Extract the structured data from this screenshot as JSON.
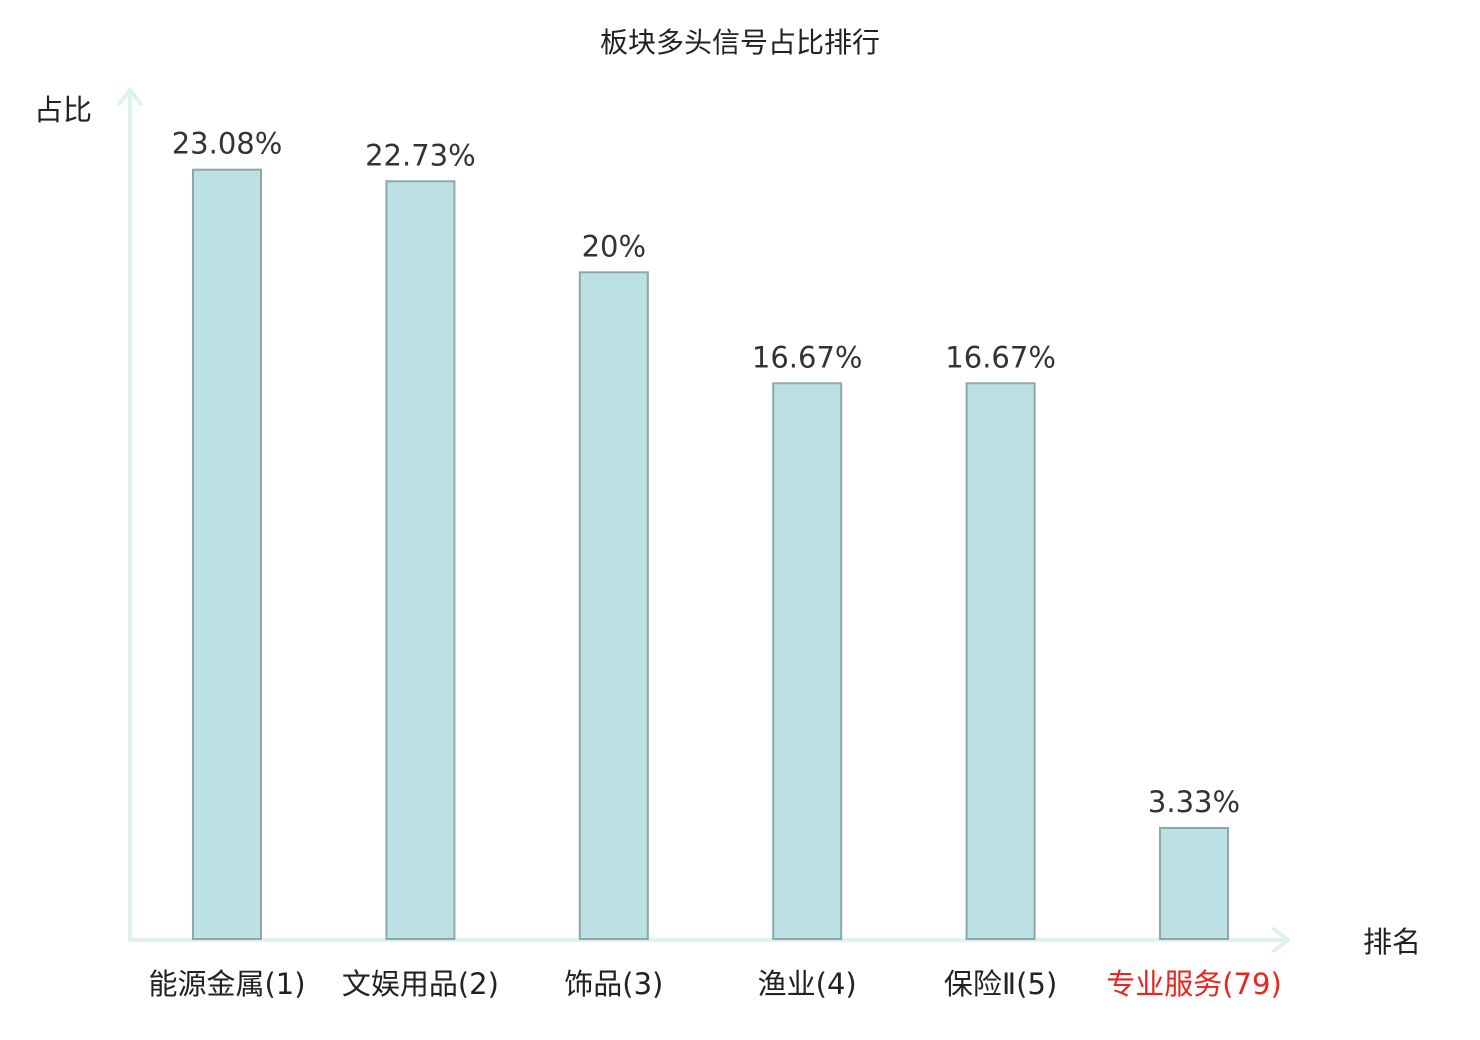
{
  "chart_data": {
    "type": "bar",
    "title": "板块多头信号占比排行",
    "xlabel": "排名",
    "ylabel": "占比",
    "categories": [
      "能源金属(1)",
      "文娱用品(2)",
      "饰品(3)",
      "渔业(4)",
      "保险Ⅱ(5)",
      "专业服务(79)"
    ],
    "values": [
      23.08,
      22.73,
      20,
      16.67,
      16.67,
      3.33
    ],
    "value_labels": [
      "23.08%",
      "22.73%",
      "20%",
      "16.67%",
      "16.67%",
      "3.33%"
    ],
    "highlight_index": 5,
    "ylim": [
      0,
      25.5
    ],
    "grid": false,
    "colors": {
      "bar_fill": "#bce0e3",
      "bar_stroke": "#8aa8ab",
      "axis": "#e0f2ef",
      "highlight_text": "#e8251f",
      "text": "#222222"
    }
  }
}
